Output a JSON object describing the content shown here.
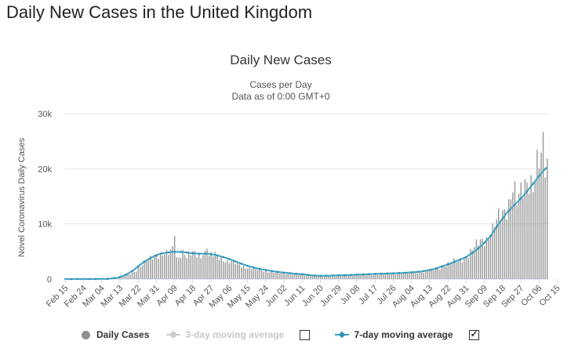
{
  "page": {
    "title": "Daily New Cases in the United Kingdom"
  },
  "chart_data": {
    "type": "bar",
    "title": "Daily New Cases",
    "subtitle_line1": "Cases per Day",
    "subtitle_line2": "Data as of 0:00 GMT+0",
    "ylabel": "Novel Coronavirus Daily Cases",
    "xlabel": "",
    "ylim": [
      0,
      30000
    ],
    "yticks": [
      0,
      10000,
      20000,
      30000
    ],
    "ytick_labels": [
      "0",
      "10k",
      "20k",
      "30k"
    ],
    "xtick_labels": [
      "Feb 15",
      "Feb 24",
      "Mar 04",
      "Mar 13",
      "Mar 22",
      "Mar 31",
      "Apr 09",
      "Apr 18",
      "Apr 27",
      "May 06",
      "May 15",
      "May 24",
      "Jun 02",
      "Jun 11",
      "Jun 20",
      "Jun 29",
      "Jul 08",
      "Jul 17",
      "Jul 26",
      "Aug 04",
      "Aug 13",
      "Aug 22",
      "Aug 31",
      "Sep 09",
      "Sep 18",
      "Sep 27",
      "Oct 06",
      "Oct 15"
    ],
    "xtick_every_days": 9,
    "grid": true,
    "legend_position": "bottom",
    "colors": {
      "bars": "#999999",
      "ma7": "#3ba4c4",
      "ma7_marker": "#2f8fb0",
      "ma3": "#cccccc"
    },
    "anchors_daily": [
      [
        0,
        0
      ],
      [
        16,
        5
      ],
      [
        22,
        60
      ],
      [
        26,
        250
      ],
      [
        30,
        700
      ],
      [
        34,
        1400
      ],
      [
        37,
        2300
      ],
      [
        40,
        3200
      ],
      [
        44,
        4300
      ],
      [
        47,
        4600
      ],
      [
        51,
        4500
      ],
      [
        54,
        5800
      ],
      [
        55,
        3800
      ],
      [
        58,
        5000
      ],
      [
        61,
        4300
      ],
      [
        64,
        4700
      ],
      [
        67,
        4200
      ],
      [
        68,
        5100
      ],
      [
        71,
        4100
      ],
      [
        74,
        4400
      ],
      [
        77,
        3900
      ],
      [
        80,
        3200
      ],
      [
        83,
        3000
      ],
      [
        86,
        2600
      ],
      [
        89,
        2200
      ],
      [
        92,
        2000
      ],
      [
        95,
        1700
      ],
      [
        98,
        1500
      ],
      [
        102,
        1300
      ],
      [
        106,
        1100
      ],
      [
        110,
        1000
      ],
      [
        114,
        900
      ],
      [
        118,
        800
      ],
      [
        122,
        650
      ],
      [
        126,
        550
      ],
      [
        130,
        600
      ],
      [
        134,
        650
      ],
      [
        138,
        700
      ],
      [
        142,
        750
      ],
      [
        146,
        800
      ],
      [
        150,
        850
      ],
      [
        154,
        900
      ],
      [
        158,
        950
      ],
      [
        162,
        1000
      ],
      [
        166,
        1100
      ],
      [
        170,
        1150
      ],
      [
        174,
        1200
      ],
      [
        178,
        1400
      ],
      [
        182,
        1700
      ],
      [
        186,
        2300
      ],
      [
        190,
        2900
      ],
      [
        193,
        3300
      ],
      [
        196,
        3800
      ],
      [
        199,
        4300
      ],
      [
        202,
        5600
      ],
      [
        205,
        7100
      ],
      [
        208,
        7500
      ],
      [
        211,
        8700
      ],
      [
        214,
        11000
      ],
      [
        217,
        12800
      ],
      [
        219,
        14000
      ],
      [
        221,
        16800
      ],
      [
        223,
        13500
      ],
      [
        225,
        15300
      ],
      [
        227,
        17500
      ],
      [
        229,
        19000
      ],
      [
        231,
        17000
      ],
      [
        233,
        20000
      ],
      [
        235,
        21000
      ],
      [
        236,
        26500
      ],
      [
        237,
        20900
      ],
      [
        238,
        21000
      ]
    ],
    "spikes": [
      [
        54,
        7800
      ],
      [
        60,
        3800
      ],
      [
        70,
        5500
      ],
      [
        236,
        26700
      ]
    ],
    "anchors_ma7": [
      [
        0,
        0
      ],
      [
        20,
        10
      ],
      [
        26,
        250
      ],
      [
        30,
        800
      ],
      [
        34,
        1700
      ],
      [
        38,
        2900
      ],
      [
        42,
        3800
      ],
      [
        46,
        4500
      ],
      [
        50,
        4800
      ],
      [
        54,
        4950
      ],
      [
        58,
        4900
      ],
      [
        62,
        4700
      ],
      [
        66,
        4600
      ],
      [
        70,
        4600
      ],
      [
        74,
        4400
      ],
      [
        78,
        4000
      ],
      [
        82,
        3500
      ],
      [
        86,
        2900
      ],
      [
        90,
        2400
      ],
      [
        94,
        2000
      ],
      [
        98,
        1700
      ],
      [
        102,
        1450
      ],
      [
        106,
        1250
      ],
      [
        110,
        1100
      ],
      [
        114,
        950
      ],
      [
        118,
        850
      ],
      [
        122,
        650
      ],
      [
        126,
        600
      ],
      [
        130,
        620
      ],
      [
        134,
        660
      ],
      [
        138,
        700
      ],
      [
        142,
        760
      ],
      [
        146,
        820
      ],
      [
        150,
        900
      ],
      [
        154,
        950
      ],
      [
        158,
        1000
      ],
      [
        162,
        1050
      ],
      [
        166,
        1100
      ],
      [
        170,
        1200
      ],
      [
        174,
        1300
      ],
      [
        178,
        1500
      ],
      [
        182,
        1800
      ],
      [
        186,
        2300
      ],
      [
        190,
        2800
      ],
      [
        194,
        3400
      ],
      [
        198,
        4000
      ],
      [
        202,
        5000
      ],
      [
        206,
        6200
      ],
      [
        210,
        7800
      ],
      [
        214,
        10000
      ],
      [
        218,
        12000
      ],
      [
        222,
        13500
      ],
      [
        226,
        15000
      ],
      [
        230,
        16800
      ],
      [
        234,
        18700
      ],
      [
        236,
        19600
      ],
      [
        238,
        20300
      ]
    ],
    "days": 239,
    "legend": {
      "daily": "Daily Cases",
      "ma3": "3-day moving average",
      "ma7": "7-day moving average"
    }
  }
}
